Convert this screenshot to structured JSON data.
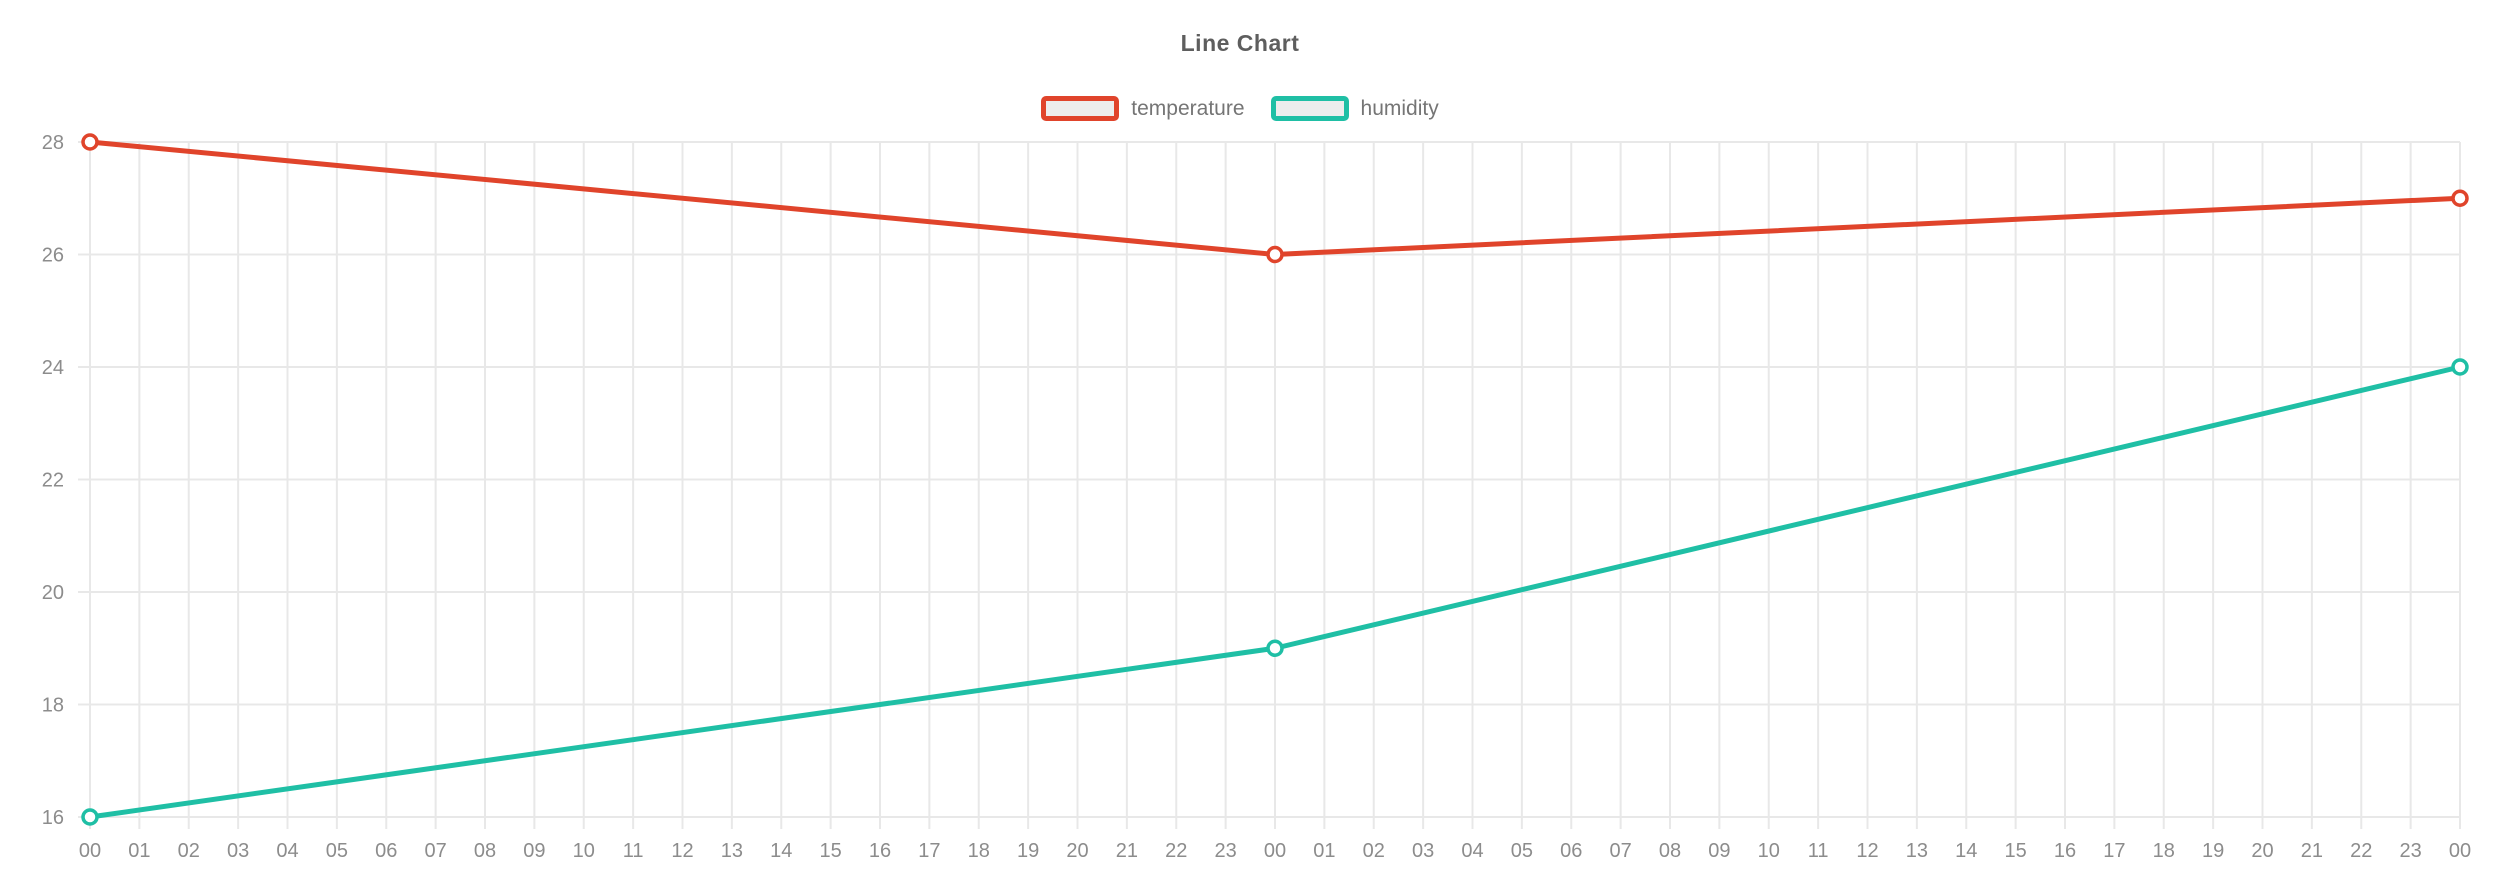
{
  "chart_data": {
    "type": "line",
    "title": "Line Chart",
    "legend_position": "top",
    "grid": true,
    "ylim": [
      16,
      28
    ],
    "yticks": [
      16,
      18,
      20,
      22,
      24,
      26,
      28
    ],
    "x_tick_labels": [
      "00",
      "01",
      "02",
      "03",
      "04",
      "05",
      "06",
      "07",
      "08",
      "09",
      "10",
      "11",
      "12",
      "13",
      "14",
      "15",
      "16",
      "17",
      "18",
      "19",
      "20",
      "21",
      "22",
      "23",
      "00",
      "01",
      "02",
      "03",
      "04",
      "05",
      "06",
      "07",
      "08",
      "09",
      "10",
      "11",
      "12",
      "13",
      "14",
      "15",
      "16",
      "17",
      "18",
      "19",
      "20",
      "21",
      "22",
      "23",
      "00"
    ],
    "series": [
      {
        "name": "temperature",
        "color": "#E0442B",
        "x_indices": [
          0,
          24,
          48
        ],
        "values": [
          28,
          26,
          27
        ]
      },
      {
        "name": "humidity",
        "color": "#1FBFA5",
        "x_indices": [
          0,
          24,
          48
        ],
        "values": [
          16,
          19,
          24
        ]
      }
    ],
    "styles": {
      "grid_color": "#E8E8E8",
      "axis_label_color": "#8C8C8C",
      "title_color": "#5E5E5E",
      "legend_label_color": "#757575",
      "legend_swatch_fill": "#EDEDED",
      "point_fill": "#FFFFFF",
      "background": "#FFFFFF"
    }
  }
}
